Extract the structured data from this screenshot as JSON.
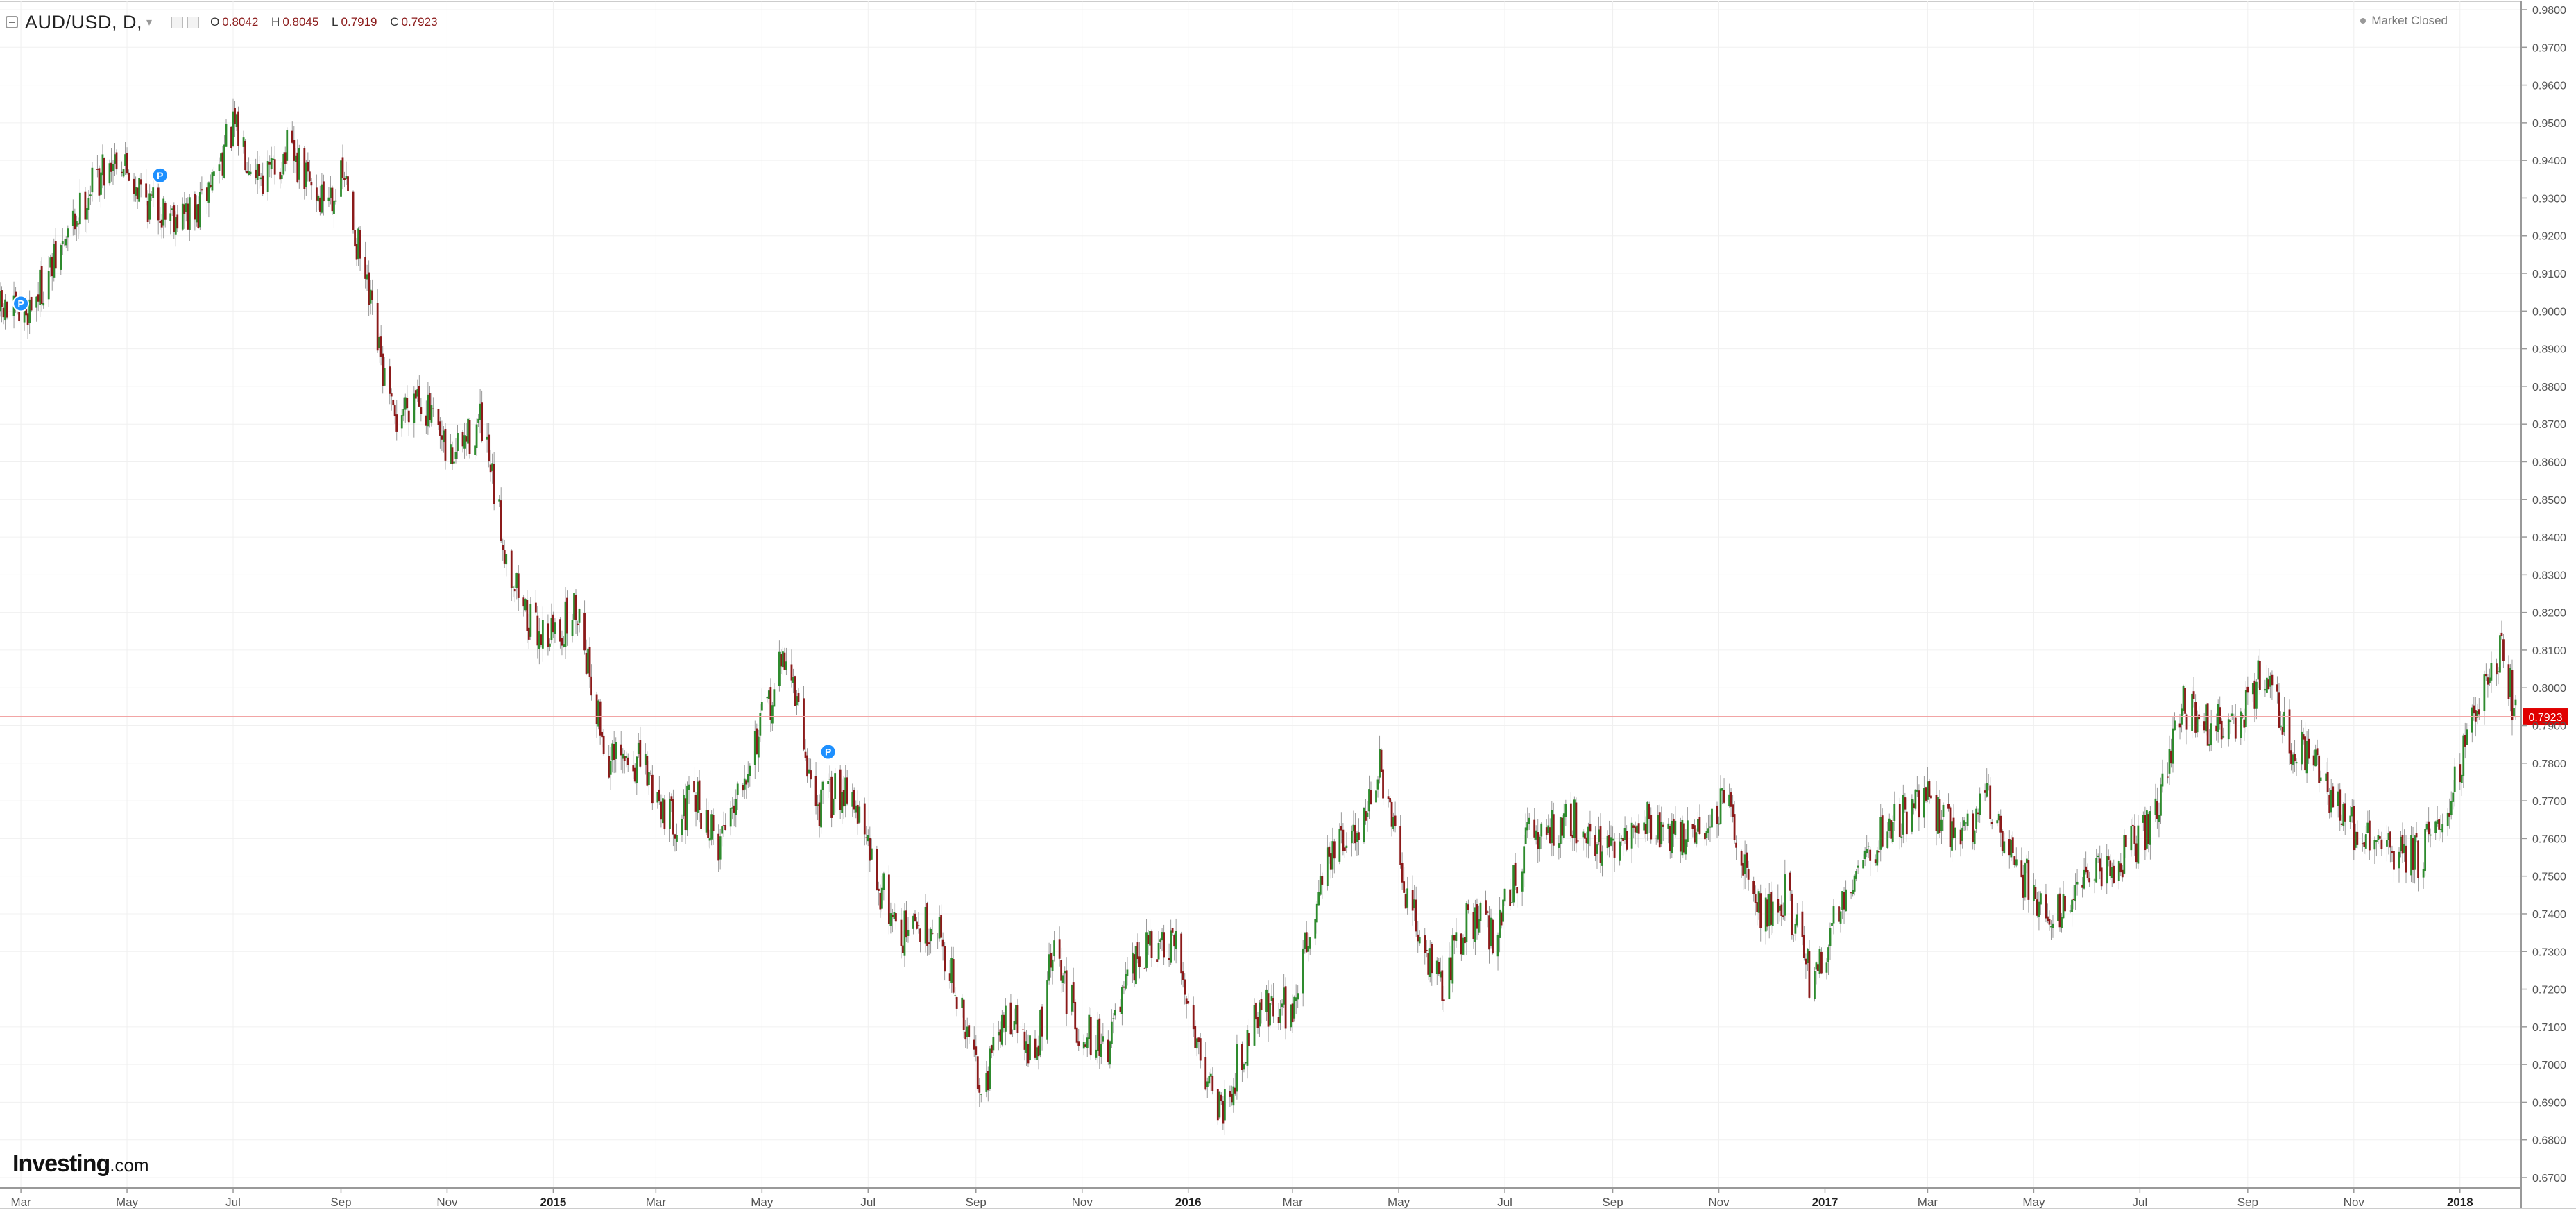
{
  "legend": {
    "symbol": "AUD/USD, D,",
    "open_key": "O",
    "open": "0.8042",
    "high_key": "H",
    "high": "0.8045",
    "low_key": "L",
    "low": "0.7919",
    "close_key": "C",
    "close": "0.7923"
  },
  "status": {
    "market": "Market Closed"
  },
  "brand": {
    "name": "Investing",
    "suffix": ".com"
  },
  "colors": {
    "up": "#2e8b2e",
    "down": "#8b1a1a",
    "wick": "#999999",
    "grid": "#f0f0f0",
    "price_line": "#f2a5a5",
    "price_label_bg": "#e00000",
    "marker": "#1e90ff"
  },
  "chart_data": {
    "type": "candlestick",
    "ylim": [
      0.67,
      0.98
    ],
    "y_ticks": [
      "0.9800",
      "0.9700",
      "0.9600",
      "0.9500",
      "0.9400",
      "0.9300",
      "0.9200",
      "0.9100",
      "0.9000",
      "0.8900",
      "0.8800",
      "0.8700",
      "0.8600",
      "0.8500",
      "0.8400",
      "0.8300",
      "0.8200",
      "0.8100",
      "0.8000",
      "0.7900",
      "0.7800",
      "0.7700",
      "0.7600",
      "0.7500",
      "0.7400",
      "0.7300",
      "0.7200",
      "0.7100",
      "0.7000",
      "0.6900",
      "0.6800",
      "0.6700"
    ],
    "x_labels": [
      {
        "label": "Mar",
        "date": "2014-03"
      },
      {
        "label": "May",
        "date": "2014-05"
      },
      {
        "label": "Jul",
        "date": "2014-07"
      },
      {
        "label": "Sep",
        "date": "2014-09"
      },
      {
        "label": "Nov",
        "date": "2014-11"
      },
      {
        "label": "2015",
        "date": "2015-01"
      },
      {
        "label": "Mar",
        "date": "2015-03"
      },
      {
        "label": "May",
        "date": "2015-05"
      },
      {
        "label": "Jul",
        "date": "2015-07"
      },
      {
        "label": "Sep",
        "date": "2015-09"
      },
      {
        "label": "Nov",
        "date": "2015-11"
      },
      {
        "label": "2016",
        "date": "2016-01"
      },
      {
        "label": "Mar",
        "date": "2016-03"
      },
      {
        "label": "May",
        "date": "2016-05"
      },
      {
        "label": "Jul",
        "date": "2016-07"
      },
      {
        "label": "Sep",
        "date": "2016-09"
      },
      {
        "label": "Nov",
        "date": "2016-11"
      },
      {
        "label": "2017",
        "date": "2017-01"
      },
      {
        "label": "Mar",
        "date": "2017-03"
      },
      {
        "label": "May",
        "date": "2017-05"
      },
      {
        "label": "Jul",
        "date": "2017-07"
      },
      {
        "label": "Sep",
        "date": "2017-09"
      },
      {
        "label": "Nov",
        "date": "2017-11"
      },
      {
        "label": "2018",
        "date": "2018-01"
      }
    ],
    "path": [
      {
        "date": "2014-02-17",
        "close": 0.9
      },
      {
        "date": "2014-03-01",
        "close": 0.898
      },
      {
        "date": "2014-03-20",
        "close": 0.912
      },
      {
        "date": "2014-04-10",
        "close": 0.933
      },
      {
        "date": "2014-04-25",
        "close": 0.942
      },
      {
        "date": "2014-05-15",
        "close": 0.928
      },
      {
        "date": "2014-06-10",
        "close": 0.925
      },
      {
        "date": "2014-06-25",
        "close": 0.942
      },
      {
        "date": "2014-07-01",
        "close": 0.948
      },
      {
        "date": "2014-07-20",
        "close": 0.935
      },
      {
        "date": "2014-08-01",
        "close": 0.942
      },
      {
        "date": "2014-08-20",
        "close": 0.93
      },
      {
        "date": "2014-09-03",
        "close": 0.935
      },
      {
        "date": "2014-09-20",
        "close": 0.895
      },
      {
        "date": "2014-10-01",
        "close": 0.87
      },
      {
        "date": "2014-10-15",
        "close": 0.88
      },
      {
        "date": "2014-11-01",
        "close": 0.86
      },
      {
        "date": "2014-11-20",
        "close": 0.87
      },
      {
        "date": "2014-12-05",
        "close": 0.835
      },
      {
        "date": "2014-12-20",
        "close": 0.815
      },
      {
        "date": "2015-01-05",
        "close": 0.815
      },
      {
        "date": "2015-01-15",
        "close": 0.822
      },
      {
        "date": "2015-02-01",
        "close": 0.78
      },
      {
        "date": "2015-02-20",
        "close": 0.78
      },
      {
        "date": "2015-03-10",
        "close": 0.765
      },
      {
        "date": "2015-03-25",
        "close": 0.77
      },
      {
        "date": "2015-04-05",
        "close": 0.758
      },
      {
        "date": "2015-04-20",
        "close": 0.778
      },
      {
        "date": "2015-05-05",
        "close": 0.795
      },
      {
        "date": "2015-05-15",
        "close": 0.81
      },
      {
        "date": "2015-06-01",
        "close": 0.768
      },
      {
        "date": "2015-06-20",
        "close": 0.775
      },
      {
        "date": "2015-07-05",
        "close": 0.75
      },
      {
        "date": "2015-07-20",
        "close": 0.735
      },
      {
        "date": "2015-08-10",
        "close": 0.738
      },
      {
        "date": "2015-08-25",
        "close": 0.71
      },
      {
        "date": "2015-09-05",
        "close": 0.695
      },
      {
        "date": "2015-09-20",
        "close": 0.715
      },
      {
        "date": "2015-10-05",
        "close": 0.7
      },
      {
        "date": "2015-10-15",
        "close": 0.73
      },
      {
        "date": "2015-10-30",
        "close": 0.71
      },
      {
        "date": "2015-11-15",
        "close": 0.705
      },
      {
        "date": "2015-12-05",
        "close": 0.73
      },
      {
        "date": "2015-12-25",
        "close": 0.73
      },
      {
        "date": "2016-01-10",
        "close": 0.7
      },
      {
        "date": "2016-01-20",
        "close": 0.688
      },
      {
        "date": "2016-02-10",
        "close": 0.715
      },
      {
        "date": "2016-03-01",
        "close": 0.715
      },
      {
        "date": "2016-03-20",
        "close": 0.755
      },
      {
        "date": "2016-04-05",
        "close": 0.76
      },
      {
        "date": "2016-04-20",
        "close": 0.778
      },
      {
        "date": "2016-05-05",
        "close": 0.745
      },
      {
        "date": "2016-05-25",
        "close": 0.72
      },
      {
        "date": "2016-06-10",
        "close": 0.74
      },
      {
        "date": "2016-06-25",
        "close": 0.735
      },
      {
        "date": "2016-07-15",
        "close": 0.76
      },
      {
        "date": "2016-08-10",
        "close": 0.765
      },
      {
        "date": "2016-09-01",
        "close": 0.755
      },
      {
        "date": "2016-09-20",
        "close": 0.765
      },
      {
        "date": "2016-10-10",
        "close": 0.76
      },
      {
        "date": "2016-10-30",
        "close": 0.765
      },
      {
        "date": "2016-11-05",
        "close": 0.77
      },
      {
        "date": "2016-11-25",
        "close": 0.74
      },
      {
        "date": "2016-12-10",
        "close": 0.745
      },
      {
        "date": "2016-12-25",
        "close": 0.72
      },
      {
        "date": "2017-01-15",
        "close": 0.75
      },
      {
        "date": "2017-02-10",
        "close": 0.765
      },
      {
        "date": "2017-03-01",
        "close": 0.77
      },
      {
        "date": "2017-03-20",
        "close": 0.76
      },
      {
        "date": "2017-04-05",
        "close": 0.77
      },
      {
        "date": "2017-04-25",
        "close": 0.75
      },
      {
        "date": "2017-05-10",
        "close": 0.74
      },
      {
        "date": "2017-05-25",
        "close": 0.745
      },
      {
        "date": "2017-06-20",
        "close": 0.755
      },
      {
        "date": "2017-07-10",
        "close": 0.765
      },
      {
        "date": "2017-07-25",
        "close": 0.795
      },
      {
        "date": "2017-08-10",
        "close": 0.79
      },
      {
        "date": "2017-08-25",
        "close": 0.79
      },
      {
        "date": "2017-09-10",
        "close": 0.805
      },
      {
        "date": "2017-09-25",
        "close": 0.785
      },
      {
        "date": "2017-10-10",
        "close": 0.78
      },
      {
        "date": "2017-10-25",
        "close": 0.765
      },
      {
        "date": "2017-11-10",
        "close": 0.76
      },
      {
        "date": "2017-11-25",
        "close": 0.755
      },
      {
        "date": "2017-12-10",
        "close": 0.755
      },
      {
        "date": "2017-12-25",
        "close": 0.77
      },
      {
        "date": "2018-01-10",
        "close": 0.795
      },
      {
        "date": "2018-01-26",
        "close": 0.81
      },
      {
        "date": "2018-02-02",
        "close": 0.7923
      }
    ],
    "last_price": "0.7923",
    "markers": [
      {
        "date": "2014-03-01",
        "price": 0.902,
        "label": "P"
      },
      {
        "date": "2014-05-20",
        "price": 0.936,
        "label": "P"
      },
      {
        "date": "2015-06-08",
        "price": 0.783,
        "label": "P"
      }
    ]
  }
}
